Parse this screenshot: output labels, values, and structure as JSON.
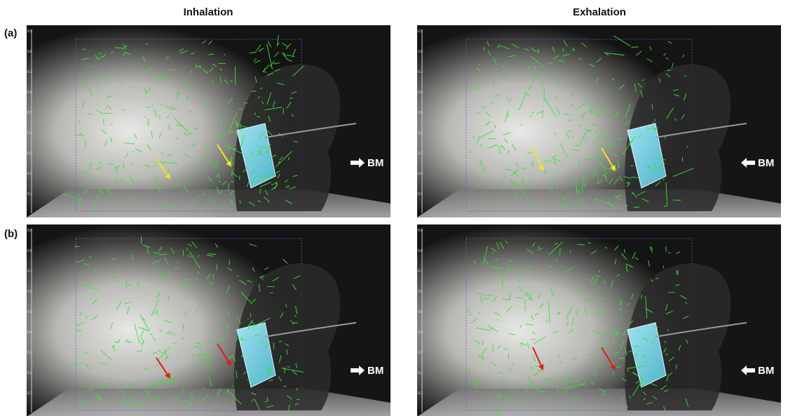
{
  "columns": [
    "Inhalation",
    "Exhalation"
  ],
  "rows": [
    "(a)",
    "(b)"
  ],
  "scale_ticks": [
    "0.9",
    "0.8",
    "0.7",
    "0.6",
    "0.5",
    "0.4",
    "0.3",
    "0.2",
    "0.1"
  ],
  "panels": [
    {
      "row": 0,
      "col": 0,
      "marker": "BM"
    },
    {
      "row": 0,
      "col": 1,
      "marker": "BM"
    },
    {
      "row": 1,
      "col": 0,
      "marker": "BM"
    },
    {
      "row": 1,
      "col": 1,
      "marker": "BM"
    }
  ]
}
